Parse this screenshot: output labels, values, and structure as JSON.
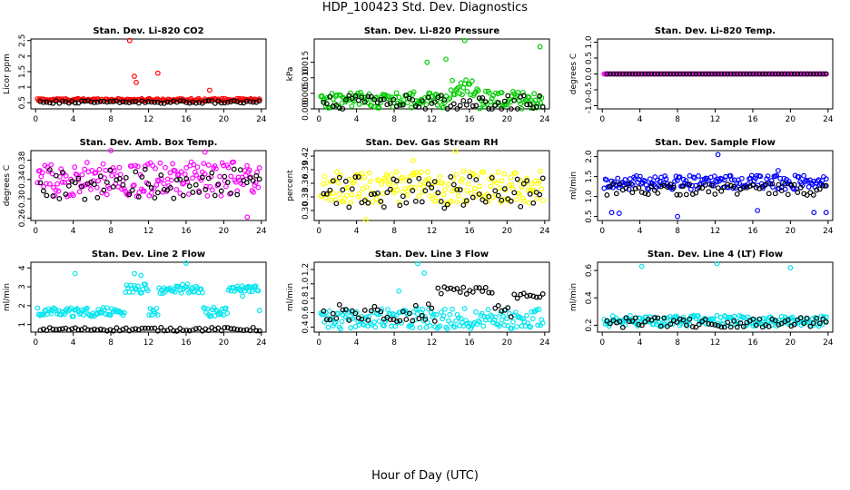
{
  "figure_title": "HDP_100423  Std. Dev. Diagnostics",
  "x_caption": "Hour of Day (UTC)",
  "colors": {
    "axis": "#000000",
    "black_series": "#000000"
  },
  "chart_data": [
    {
      "type": "scatter",
      "title": "Stan. Dev. Li-820 CO2",
      "ylabel": "Licor ppm",
      "xlim": [
        -0.5,
        24.5
      ],
      "xticks": [
        "0",
        "4",
        "8",
        "12",
        "16",
        "20",
        "24"
      ],
      "ylim": [
        0.3,
        2.55
      ],
      "yticks": [
        "0.5",
        "1",
        "1.5",
        "2",
        "2.5"
      ],
      "ytick_values": [
        0.5,
        1,
        1.5,
        2,
        2.5
      ],
      "color": "#ff0000",
      "base": 0.58,
      "spread": 0.05,
      "black_base": 0.52,
      "black_spread": 0.05,
      "outliers": [
        [
          10,
          2.5
        ],
        [
          10.5,
          1.35
        ],
        [
          10.7,
          1.15
        ],
        [
          13,
          1.45
        ],
        [
          18.5,
          0.9
        ]
      ]
    },
    {
      "type": "scatter",
      "title": "Stan. Dev. Li-820 Pressure",
      "ylabel": "kPa",
      "xlim": [
        -0.5,
        24.5
      ],
      "xticks": [
        "0",
        "4",
        "8",
        "12",
        "16",
        "20",
        "24"
      ],
      "ylim": [
        0,
        0.0225
      ],
      "yticks": [
        "0.000",
        "0.005",
        "0.010",
        "0.015"
      ],
      "ytick_values": [
        0,
        0.005,
        0.01,
        0.015
      ],
      "color": "#00cc00",
      "base": 0.002,
      "spread": 0.0035,
      "black_base": 0.002,
      "black_spread": 0.003,
      "outliers": [
        [
          15.5,
          0.022
        ],
        [
          23.5,
          0.02
        ],
        [
          11.5,
          0.015
        ],
        [
          13.5,
          0.016
        ]
      ]
    },
    {
      "type": "scatter",
      "title": "Stan. Dev. Li-820 Temp.",
      "ylabel": "degrees C",
      "xlim": [
        -0.5,
        24.5
      ],
      "xticks": [
        "0",
        "4",
        "8",
        "12",
        "16",
        "20",
        "24"
      ],
      "ylim": [
        -1.1,
        1.1
      ],
      "yticks": [
        "-1.0",
        "-0.5",
        "0.0",
        "0.5",
        "1.0"
      ],
      "ytick_values": [
        -1,
        -0.5,
        0,
        0.5,
        1
      ],
      "color": "#ff00ff",
      "base": 0,
      "spread": 0,
      "black_base": 0,
      "black_spread": 0,
      "outliers": []
    },
    {
      "type": "scatter",
      "title": "Stan. Dev. Amb. Box Temp.",
      "ylabel": "degrees C",
      "xlim": [
        -0.5,
        24.5
      ],
      "xticks": [
        "0",
        "4",
        "8",
        "12",
        "16",
        "20",
        "24"
      ],
      "ylim": [
        0.255,
        0.4
      ],
      "yticks": [
        "0.26",
        "0.30",
        "0.34",
        "0.38"
      ],
      "ytick_values": [
        0.26,
        0.3,
        0.34,
        0.38
      ],
      "color": "#ff00ff",
      "base": 0.33,
      "spread": 0.045,
      "black_base": 0.33,
      "black_spread": 0.04,
      "outliers": [
        [
          22.5,
          0.262
        ],
        [
          8,
          0.4
        ],
        [
          18,
          0.397
        ]
      ]
    },
    {
      "type": "scatter",
      "title": "Stan. Dev. Gas Stream RH",
      "ylabel": "percent",
      "xlim": [
        -0.5,
        24.5
      ],
      "xticks": [
        "0",
        "4",
        "8",
        "12",
        "16",
        "20",
        "24"
      ],
      "ylim": [
        0.278,
        0.432
      ],
      "yticks": [
        "0.30",
        "0.33",
        "0.36",
        "0.39",
        "0.42"
      ],
      "ytick_values": [
        0.3,
        0.33,
        0.36,
        0.39,
        0.42
      ],
      "color": "#ffff00",
      "base": 0.34,
      "spread": 0.045,
      "black_base": 0.34,
      "black_spread": 0.045,
      "outliers": [
        [
          14.5,
          0.43
        ],
        [
          10,
          0.41
        ],
        [
          5,
          0.28
        ]
      ]
    },
    {
      "type": "scatter",
      "title": "Stan. Dev. Sample Flow",
      "ylabel": "ml/min",
      "xlim": [
        -0.5,
        24.5
      ],
      "xticks": [
        "0",
        "4",
        "8",
        "12",
        "16",
        "20",
        "24"
      ],
      "ylim": [
        0.4,
        2.15
      ],
      "yticks": [
        "0.5",
        "1.0",
        "1.5",
        "2.0"
      ],
      "ytick_values": [
        0.5,
        1,
        1.5,
        2
      ],
      "color": "#0000ff",
      "base": 1.3,
      "spread": 0.22,
      "black_base": 1.18,
      "black_spread": 0.18,
      "outliers": [
        [
          12.3,
          2.05
        ],
        [
          8,
          0.5
        ],
        [
          1,
          0.6
        ],
        [
          1.8,
          0.58
        ],
        [
          16.5,
          0.65
        ],
        [
          22.5,
          0.6
        ],
        [
          23.8,
          0.6
        ],
        [
          18.7,
          1.65
        ]
      ]
    },
    {
      "type": "scatter",
      "title": "Stan. Dev. Line 2 Flow",
      "ylabel": "ml/min",
      "xlim": [
        -0.5,
        24.5
      ],
      "xticks": [
        "0",
        "4",
        "8",
        "12",
        "16",
        "20",
        "24"
      ],
      "ylim": [
        0.6,
        4.3
      ],
      "yticks": [
        "1",
        "2",
        "3",
        "4"
      ],
      "ytick_values": [
        1,
        2,
        3,
        4
      ],
      "color": "#00e5ee",
      "base": 1.6,
      "spread": 0.3,
      "black_base": 0.75,
      "black_spread": 0.12,
      "outliers": [
        [
          4.2,
          3.7
        ],
        [
          10.5,
          3.7
        ],
        [
          11.2,
          3.6
        ],
        [
          16,
          4.25
        ],
        [
          22,
          2.5
        ]
      ]
    },
    {
      "type": "scatter",
      "title": "Stan. Dev. Line 3 Flow",
      "ylabel": "ml/min",
      "xlim": [
        -0.5,
        24.5
      ],
      "xticks": [
        "0",
        "4",
        "8",
        "12",
        "16",
        "20",
        "24"
      ],
      "ylim": [
        0.33,
        1.3
      ],
      "yticks": [
        "0.4",
        "0.6",
        "0.8",
        "1.0",
        "1.2"
      ],
      "ytick_values": [
        0.4,
        0.6,
        0.8,
        1,
        1.2
      ],
      "color": "#00e5ee",
      "base": 0.47,
      "spread": 0.18,
      "black_base": 0.6,
      "black_spread": 0.15,
      "outliers": [
        [
          10.5,
          1.28
        ],
        [
          11.2,
          1.15
        ],
        [
          8.5,
          0.9
        ]
      ]
    },
    {
      "type": "scatter",
      "title": "Stan. Dev. Line 4 (LT) Flow",
      "ylabel": "ml/min",
      "xlim": [
        -0.5,
        24.5
      ],
      "xticks": [
        "0",
        "4",
        "8",
        "12",
        "16",
        "20",
        "24"
      ],
      "ylim": [
        0.15,
        0.66
      ],
      "yticks": [
        "0.2",
        "0.4",
        "0.6"
      ],
      "ytick_values": [
        0.2,
        0.4,
        0.6
      ],
      "color": "#00e5ee",
      "base": 0.22,
      "spread": 0.05,
      "black_base": 0.22,
      "black_spread": 0.045,
      "outliers": [
        [
          4.2,
          0.63
        ],
        [
          12.2,
          0.65
        ],
        [
          20,
          0.62
        ]
      ]
    }
  ]
}
